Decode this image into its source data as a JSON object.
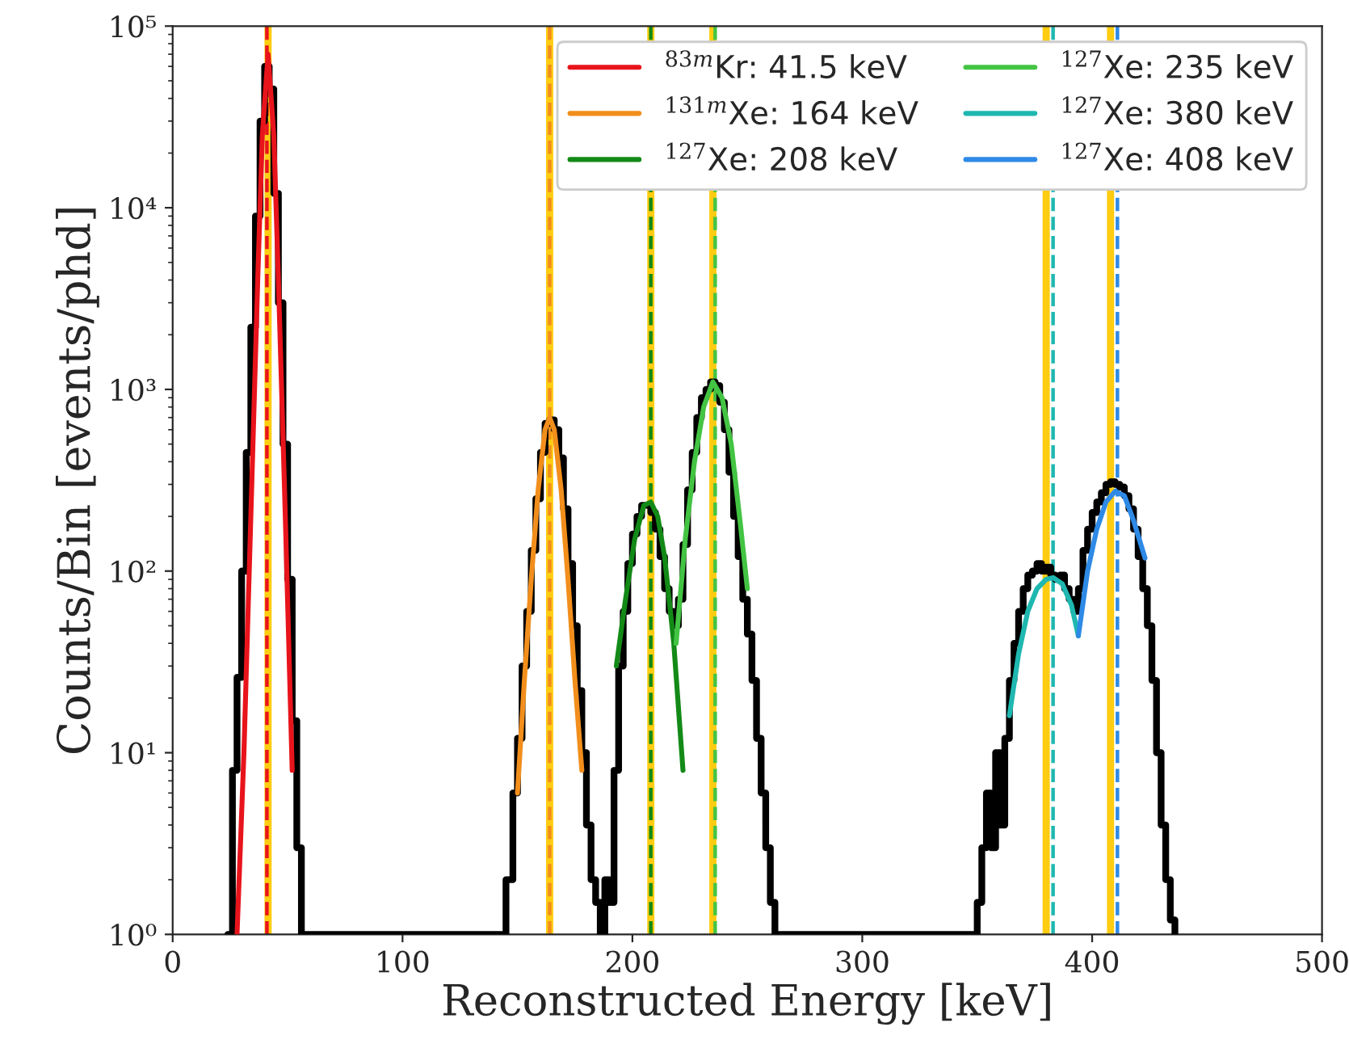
{
  "chart_data": {
    "type": "line",
    "xlabel": "Reconstructed Energy [keV]",
    "ylabel": "Counts/Bin [events/phd]",
    "log": "y",
    "xlim": [
      0,
      500
    ],
    "xticks": [
      0,
      100,
      200,
      300,
      400,
      500
    ],
    "ylim": [
      1,
      100000
    ],
    "yticks": [
      {
        "value": 1,
        "label": "10⁰"
      },
      {
        "value": 10,
        "label": "10¹"
      },
      {
        "value": 100,
        "label": "10²"
      },
      {
        "value": 1000,
        "label": "10³"
      },
      {
        "value": 10000,
        "label": "10⁴"
      },
      {
        "value": 100000,
        "label": "10⁵"
      }
    ],
    "grid": false,
    "legend": "top right",
    "ref_lines": [
      {
        "axis": "x",
        "value": 41.5,
        "color": "#ffcc11",
        "line_style": "solid"
      },
      {
        "axis": "x",
        "value": 164,
        "color": "#ffcc11",
        "line_style": "solid"
      },
      {
        "axis": "x",
        "value": 208,
        "color": "#ffcc11",
        "line_style": "solid"
      },
      {
        "axis": "x",
        "value": 235,
        "color": "#ffcc11",
        "line_style": "solid"
      },
      {
        "axis": "x",
        "value": 380,
        "color": "#ffcc11",
        "line_style": "solid"
      },
      {
        "axis": "x",
        "value": 408,
        "color": "#ffcc11",
        "line_style": "solid"
      },
      {
        "axis": "x",
        "value": 41,
        "color": "#e8141c",
        "line_style": "dashed"
      },
      {
        "axis": "x",
        "value": 164,
        "color": "#f28e1c",
        "line_style": "dashed"
      },
      {
        "axis": "x",
        "value": 208,
        "color": "#138a17",
        "line_style": "dashed"
      },
      {
        "axis": "x",
        "value": 236,
        "color": "#43c443",
        "line_style": "dashed"
      },
      {
        "axis": "x",
        "value": 383,
        "color": "#1fb8b0",
        "line_style": "dashed"
      },
      {
        "axis": "x",
        "value": 411,
        "color": "#2e8ae6",
        "line_style": "dashed"
      }
    ],
    "series": [
      {
        "type": "step",
        "color": "#000000",
        "x": [
          24,
          26,
          28,
          30,
          32,
          34,
          36,
          38,
          40,
          42,
          44,
          46,
          48,
          50,
          52,
          54,
          56,
          143,
          145,
          148,
          150,
          152,
          154,
          156,
          158,
          160,
          162,
          164,
          166,
          168,
          170,
          172,
          174,
          176,
          178,
          180,
          182,
          184,
          186,
          188,
          190,
          192,
          194,
          196,
          198,
          200,
          202,
          204,
          206,
          208,
          210,
          212,
          214,
          216,
          218,
          220,
          222,
          224,
          226,
          228,
          230,
          232,
          234,
          236,
          238,
          240,
          242,
          244,
          246,
          248,
          250,
          252,
          254,
          256,
          258,
          260,
          262,
          347,
          350,
          352,
          354,
          356,
          358,
          360,
          362,
          364,
          366,
          368,
          370,
          372,
          374,
          376,
          378,
          380,
          382,
          384,
          386,
          388,
          390,
          392,
          394,
          396,
          398,
          400,
          402,
          404,
          406,
          408,
          410,
          412,
          414,
          416,
          418,
          420,
          422,
          424,
          426,
          428,
          430,
          432,
          434,
          436
        ],
        "values": [
          1,
          8,
          26,
          100,
          450,
          2200,
          9000,
          30000,
          60000,
          45000,
          12000,
          3000,
          500,
          90,
          15,
          3,
          1,
          1,
          2,
          6,
          12,
          30,
          60,
          130,
          250,
          450,
          650,
          680,
          600,
          420,
          220,
          110,
          50,
          22,
          10,
          4,
          2,
          1.5,
          1,
          2,
          1.5,
          8,
          30,
          60,
          110,
          160,
          200,
          230,
          230,
          210,
          170,
          120,
          80,
          60,
          50,
          70,
          140,
          280,
          450,
          700,
          900,
          1000,
          1100,
          1050,
          850,
          600,
          350,
          200,
          120,
          70,
          45,
          25,
          12,
          6,
          3,
          1.5,
          1,
          1,
          1.5,
          3,
          6,
          3,
          10,
          4,
          12,
          25,
          40,
          60,
          80,
          95,
          100,
          110,
          100,
          105,
          95,
          90,
          95,
          80,
          70,
          60,
          80,
          130,
          170,
          210,
          240,
          270,
          300,
          310,
          300,
          290,
          260,
          220,
          170,
          120,
          80,
          50,
          25,
          10,
          4,
          2,
          1.2,
          1
        ]
      },
      {
        "name": "$^{83m}$Kr: 41.5 keV",
        "color": "#e8141c",
        "x": [
          28,
          31,
          34,
          37,
          39,
          41.5,
          44,
          46,
          49,
          52
        ],
        "values": [
          1,
          10,
          200,
          4000,
          25000,
          70000,
          25000,
          4000,
          200,
          8
        ]
      },
      {
        "name": "$^{131m}$Xe: 164 keV",
        "color": "#f28e1c",
        "x": [
          150,
          153,
          156,
          159,
          162,
          164,
          166,
          169,
          172,
          175,
          178
        ],
        "values": [
          6,
          25,
          90,
          280,
          600,
          700,
          600,
          280,
          90,
          25,
          8
        ]
      },
      {
        "name": "$^{127}$Xe: 208 keV",
        "color": "#138a17",
        "x": [
          193,
          197,
          201,
          205,
          208,
          211,
          214,
          218,
          222
        ],
        "values": [
          30,
          70,
          150,
          230,
          240,
          200,
          120,
          40,
          8
        ]
      },
      {
        "name": "$^{127}$Xe: 235 keV",
        "color": "#43c443",
        "x": [
          219,
          223,
          227,
          231,
          235,
          239,
          243,
          247,
          250
        ],
        "values": [
          40,
          150,
          400,
          800,
          1100,
          900,
          500,
          180,
          80
        ]
      },
      {
        "name": "$^{127}$Xe: 380 keV",
        "color": "#1fb8b0",
        "x": [
          364,
          368,
          372,
          376,
          380,
          383,
          387,
          391,
          394
        ],
        "values": [
          16,
          35,
          60,
          80,
          90,
          92,
          85,
          65,
          44
        ]
      },
      {
        "name": "$^{127}$Xe: 408 keV",
        "color": "#2e8ae6",
        "x": [
          394,
          398,
          402,
          406,
          410,
          414,
          418,
          423
        ],
        "values": [
          44,
          100,
          170,
          240,
          275,
          260,
          190,
          118
        ]
      }
    ]
  }
}
